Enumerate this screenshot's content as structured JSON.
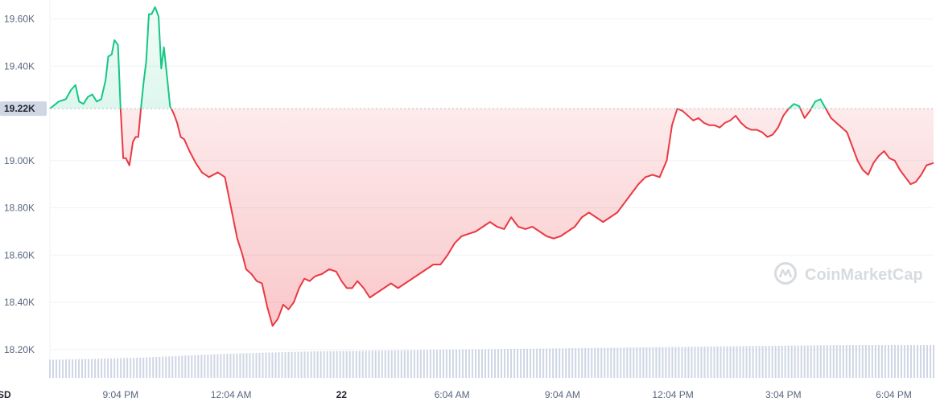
{
  "watermark": {
    "text": "CoinMarketCap",
    "icon": "coinmarketcap-logo-icon"
  },
  "baseline_label": "19.22K",
  "currency_label": "SD",
  "colors": {
    "up": "#16c784",
    "down": "#ea3943",
    "grid": "#eff2f5",
    "baseline": "#b8bec7",
    "volume": "#cfd6e4",
    "axis_text": "#58667e",
    "badge_bg": "#cfd6e4"
  },
  "chart_data": {
    "type": "area",
    "baseline": 19220,
    "ylim": [
      18080,
      19680
    ],
    "y_ticks": [
      {
        "value": 19600,
        "label": "19.60K"
      },
      {
        "value": 19400,
        "label": "19.40K"
      },
      {
        "value": 19000,
        "label": "19.00K"
      },
      {
        "value": 18800,
        "label": "18.80K"
      },
      {
        "value": 18600,
        "label": "18.60K"
      },
      {
        "value": 18400,
        "label": "18.40K"
      },
      {
        "value": 18200,
        "label": "18.20K"
      }
    ],
    "x_ticks": [
      {
        "label": "9:04 PM",
        "t": 0.08,
        "bold": false
      },
      {
        "label": "12:04 AM",
        "t": 0.205,
        "bold": false
      },
      {
        "label": "22",
        "t": 0.33,
        "bold": true
      },
      {
        "label": "6:04 AM",
        "t": 0.455,
        "bold": false
      },
      {
        "label": "9:04 AM",
        "t": 0.58,
        "bold": false
      },
      {
        "label": "12:04 PM",
        "t": 0.705,
        "bold": false
      },
      {
        "label": "3:04 PM",
        "t": 0.83,
        "bold": false
      },
      {
        "label": "6:04 PM",
        "t": 0.955,
        "bold": false
      }
    ],
    "price_points": [
      [
        0.0,
        19220
      ],
      [
        0.01,
        19250
      ],
      [
        0.018,
        19260
      ],
      [
        0.024,
        19300
      ],
      [
        0.029,
        19320
      ],
      [
        0.033,
        19250
      ],
      [
        0.038,
        19240
      ],
      [
        0.043,
        19270
      ],
      [
        0.048,
        19280
      ],
      [
        0.053,
        19250
      ],
      [
        0.058,
        19260
      ],
      [
        0.063,
        19340
      ],
      [
        0.066,
        19440
      ],
      [
        0.07,
        19450
      ],
      [
        0.073,
        19510
      ],
      [
        0.077,
        19490
      ],
      [
        0.08,
        19220
      ],
      [
        0.083,
        19010
      ],
      [
        0.086,
        19010
      ],
      [
        0.09,
        18980
      ],
      [
        0.094,
        19080
      ],
      [
        0.097,
        19100
      ],
      [
        0.1,
        19100
      ],
      [
        0.103,
        19220
      ],
      [
        0.106,
        19330
      ],
      [
        0.109,
        19420
      ],
      [
        0.112,
        19620
      ],
      [
        0.115,
        19620
      ],
      [
        0.119,
        19650
      ],
      [
        0.123,
        19610
      ],
      [
        0.126,
        19390
      ],
      [
        0.129,
        19480
      ],
      [
        0.133,
        19340
      ],
      [
        0.136,
        19230
      ],
      [
        0.14,
        19200
      ],
      [
        0.144,
        19160
      ],
      [
        0.148,
        19100
      ],
      [
        0.152,
        19090
      ],
      [
        0.158,
        19040
      ],
      [
        0.165,
        18990
      ],
      [
        0.172,
        18950
      ],
      [
        0.18,
        18930
      ],
      [
        0.19,
        18950
      ],
      [
        0.198,
        18930
      ],
      [
        0.205,
        18800
      ],
      [
        0.212,
        18670
      ],
      [
        0.218,
        18600
      ],
      [
        0.222,
        18540
      ],
      [
        0.228,
        18520
      ],
      [
        0.234,
        18490
      ],
      [
        0.24,
        18480
      ],
      [
        0.246,
        18380
      ],
      [
        0.252,
        18300
      ],
      [
        0.258,
        18330
      ],
      [
        0.264,
        18390
      ],
      [
        0.27,
        18370
      ],
      [
        0.276,
        18400
      ],
      [
        0.282,
        18460
      ],
      [
        0.288,
        18500
      ],
      [
        0.294,
        18490
      ],
      [
        0.3,
        18510
      ],
      [
        0.308,
        18520
      ],
      [
        0.316,
        18540
      ],
      [
        0.324,
        18530
      ],
      [
        0.33,
        18490
      ],
      [
        0.336,
        18460
      ],
      [
        0.342,
        18460
      ],
      [
        0.348,
        18490
      ],
      [
        0.355,
        18460
      ],
      [
        0.362,
        18420
      ],
      [
        0.37,
        18440
      ],
      [
        0.378,
        18460
      ],
      [
        0.386,
        18480
      ],
      [
        0.394,
        18460
      ],
      [
        0.402,
        18480
      ],
      [
        0.41,
        18500
      ],
      [
        0.418,
        18520
      ],
      [
        0.426,
        18540
      ],
      [
        0.434,
        18560
      ],
      [
        0.442,
        18560
      ],
      [
        0.45,
        18600
      ],
      [
        0.458,
        18650
      ],
      [
        0.466,
        18680
      ],
      [
        0.474,
        18690
      ],
      [
        0.482,
        18700
      ],
      [
        0.49,
        18720
      ],
      [
        0.498,
        18740
      ],
      [
        0.506,
        18720
      ],
      [
        0.514,
        18710
      ],
      [
        0.522,
        18760
      ],
      [
        0.53,
        18720
      ],
      [
        0.538,
        18710
      ],
      [
        0.546,
        18720
      ],
      [
        0.554,
        18700
      ],
      [
        0.562,
        18680
      ],
      [
        0.57,
        18670
      ],
      [
        0.578,
        18680
      ],
      [
        0.586,
        18700
      ],
      [
        0.594,
        18720
      ],
      [
        0.602,
        18760
      ],
      [
        0.61,
        18780
      ],
      [
        0.618,
        18760
      ],
      [
        0.626,
        18740
      ],
      [
        0.634,
        18760
      ],
      [
        0.642,
        18780
      ],
      [
        0.65,
        18820
      ],
      [
        0.658,
        18860
      ],
      [
        0.666,
        18900
      ],
      [
        0.674,
        18930
      ],
      [
        0.682,
        18940
      ],
      [
        0.69,
        18930
      ],
      [
        0.698,
        19000
      ],
      [
        0.704,
        19150
      ],
      [
        0.71,
        19220
      ],
      [
        0.716,
        19210
      ],
      [
        0.722,
        19190
      ],
      [
        0.728,
        19170
      ],
      [
        0.734,
        19180
      ],
      [
        0.74,
        19160
      ],
      [
        0.746,
        19150
      ],
      [
        0.752,
        19150
      ],
      [
        0.758,
        19140
      ],
      [
        0.764,
        19160
      ],
      [
        0.77,
        19170
      ],
      [
        0.776,
        19190
      ],
      [
        0.782,
        19160
      ],
      [
        0.788,
        19140
      ],
      [
        0.794,
        19130
      ],
      [
        0.8,
        19130
      ],
      [
        0.806,
        19120
      ],
      [
        0.812,
        19100
      ],
      [
        0.818,
        19110
      ],
      [
        0.824,
        19140
      ],
      [
        0.83,
        19190
      ],
      [
        0.836,
        19220
      ],
      [
        0.842,
        19240
      ],
      [
        0.848,
        19230
      ],
      [
        0.854,
        19180
      ],
      [
        0.86,
        19210
      ],
      [
        0.866,
        19250
      ],
      [
        0.872,
        19260
      ],
      [
        0.878,
        19220
      ],
      [
        0.884,
        19180
      ],
      [
        0.89,
        19160
      ],
      [
        0.896,
        19140
      ],
      [
        0.902,
        19120
      ],
      [
        0.908,
        19060
      ],
      [
        0.914,
        19000
      ],
      [
        0.92,
        18960
      ],
      [
        0.926,
        18940
      ],
      [
        0.932,
        18990
      ],
      [
        0.938,
        19020
      ],
      [
        0.944,
        19040
      ],
      [
        0.95,
        19010
      ],
      [
        0.956,
        19000
      ],
      [
        0.962,
        18960
      ],
      [
        0.968,
        18930
      ],
      [
        0.974,
        18900
      ],
      [
        0.98,
        18910
      ],
      [
        0.986,
        18940
      ],
      [
        0.992,
        18980
      ],
      [
        1.0,
        18990
      ]
    ],
    "volume_profile": [
      [
        0.0,
        0.45
      ],
      [
        0.1,
        0.5
      ],
      [
        0.2,
        0.6
      ],
      [
        0.3,
        0.66
      ],
      [
        0.45,
        0.7
      ],
      [
        0.6,
        0.74
      ],
      [
        0.75,
        0.78
      ],
      [
        0.9,
        0.82
      ],
      [
        1.0,
        0.82
      ]
    ]
  }
}
